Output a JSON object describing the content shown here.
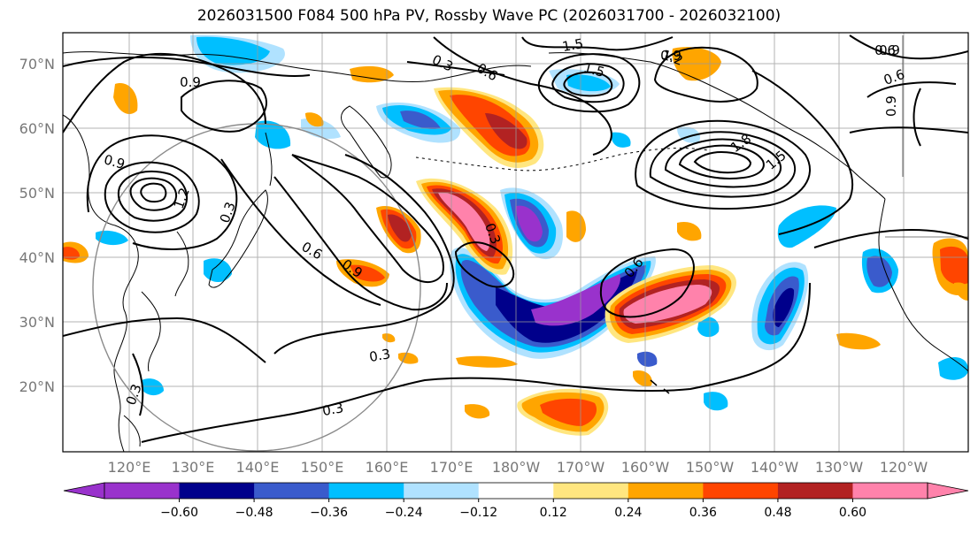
{
  "title": "2026031500 F084 500 hPa PV, Rossby Wave PC (2026031700 - 2026032100)",
  "lat_labels": [
    "70°N",
    "60°N",
    "50°N",
    "40°N",
    "30°N",
    "20°N"
  ],
  "lon_labels": [
    "120°E",
    "130°E",
    "140°E",
    "150°E",
    "160°E",
    "170°E",
    "180°W",
    "170°W",
    "160°W",
    "150°W",
    "140°W",
    "130°W",
    "120°W"
  ],
  "colorbar": {
    "ticks": [
      "−0.60",
      "−0.48",
      "−0.36",
      "−0.24",
      "−0.12",
      "0.12",
      "0.24",
      "0.36",
      "0.48",
      "0.60"
    ],
    "colors": [
      "#9932CC",
      "#00008B",
      "#3A5BCC",
      "#00BFFF",
      "#B0E2FF",
      "#FFFFFF",
      "#FFE680",
      "#FFA500",
      "#FF4500",
      "#B22222",
      "#FF82AB"
    ]
  },
  "contour_labels": [
    "1.5",
    "1.5",
    "1.2",
    "0.9",
    "0.6",
    "0.3",
    "0.6",
    "0.6",
    "0.9",
    "0.9",
    "1.2",
    "1.8",
    "1.5",
    "0.9",
    "0.3",
    "0.6",
    "0.9",
    "0.3",
    "0.3",
    "0.3",
    "0.6",
    "0.3",
    "0.9"
  ]
}
